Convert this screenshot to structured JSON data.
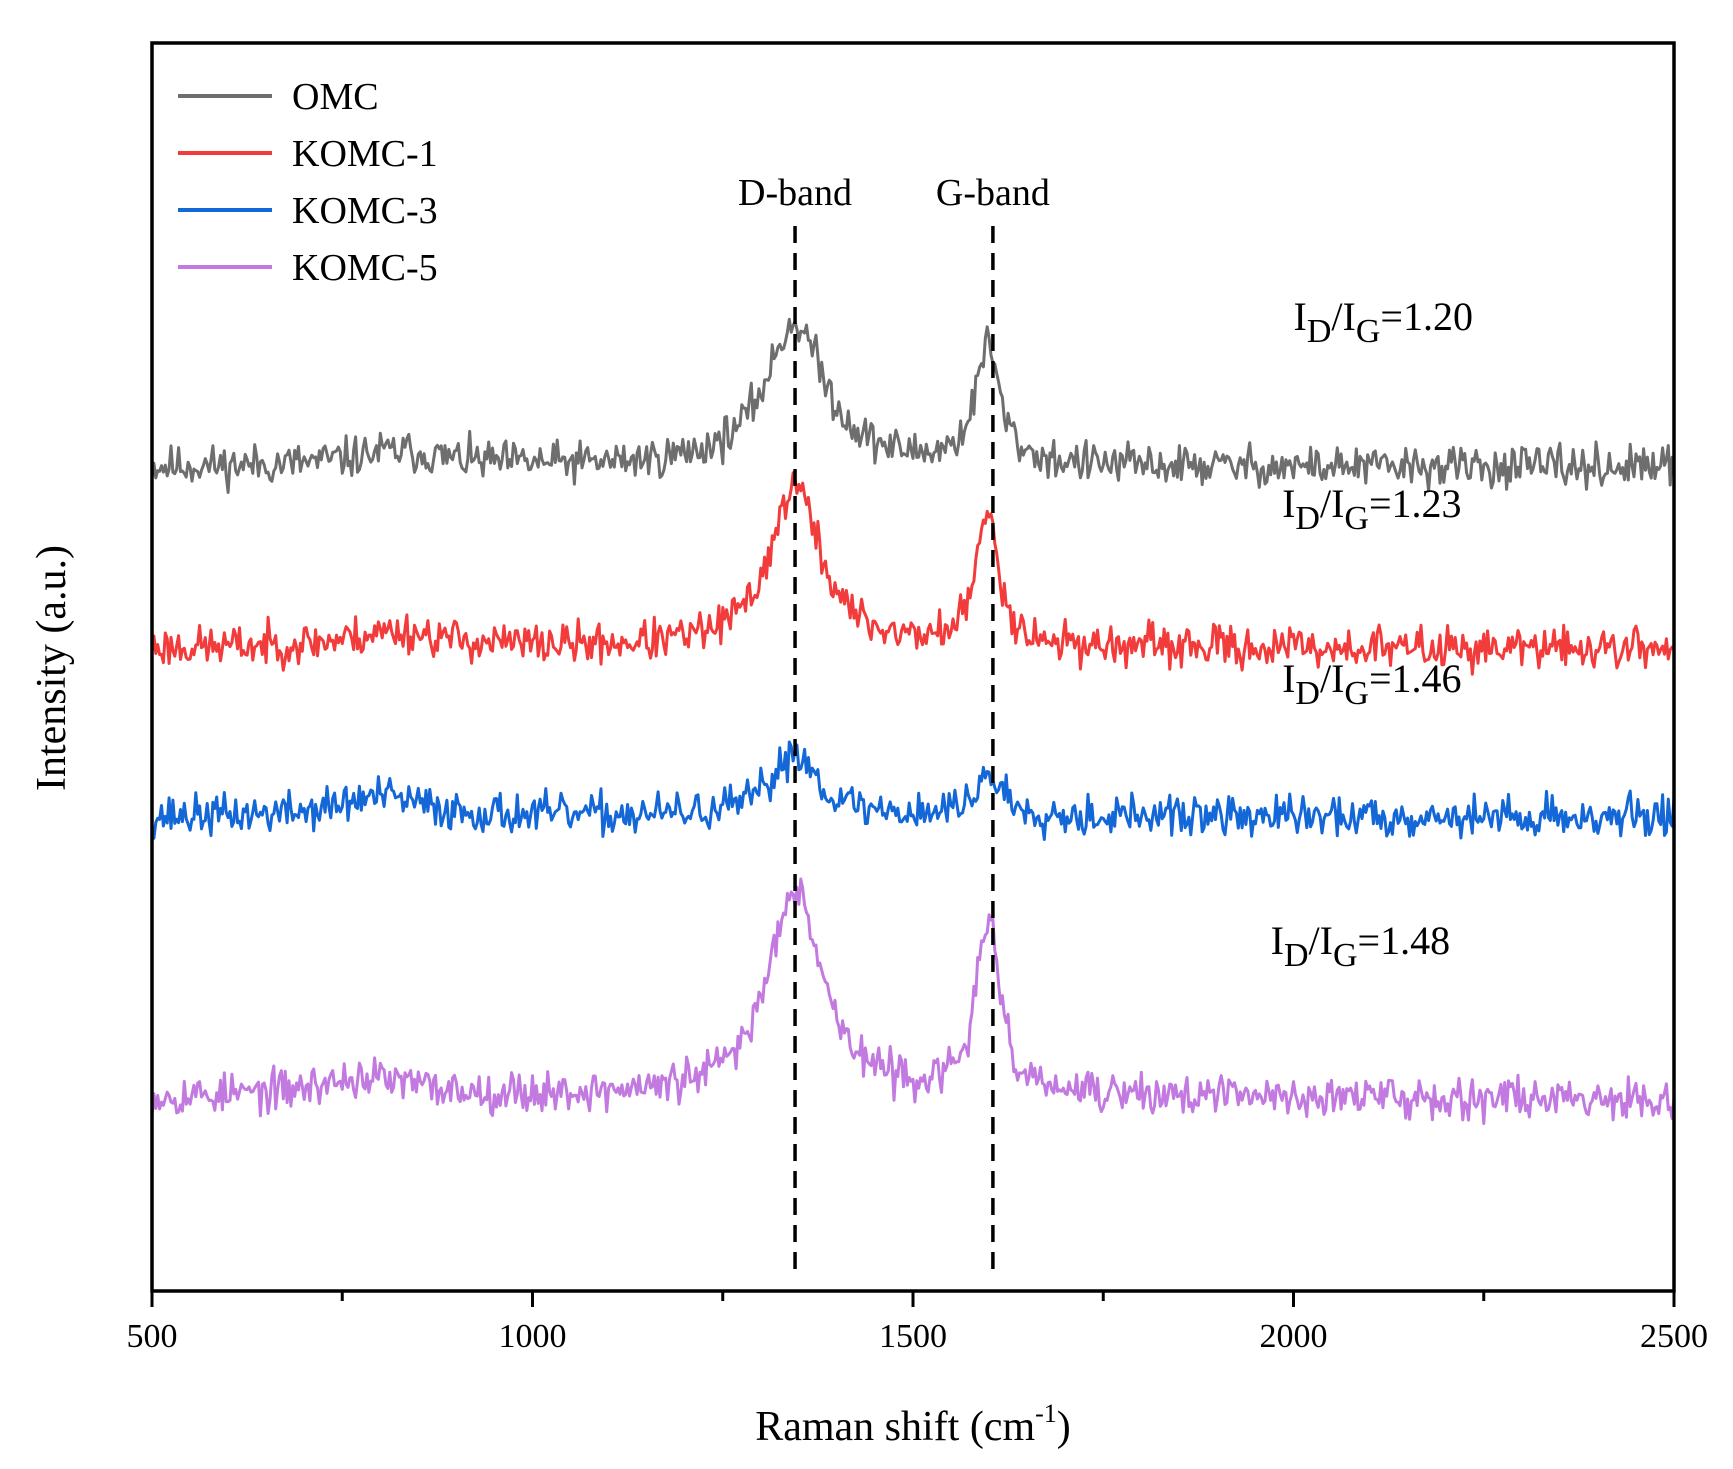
{
  "chart_data": {
    "type": "line",
    "title": "",
    "xlabel": "Raman shift (cm",
    "xlabel_sup": "-1",
    "xlabel_tail": ")",
    "ylabel": "Intensity (a.u.)",
    "xlim": [
      500,
      2500
    ],
    "xticks": [
      500,
      1000,
      1500,
      2000,
      2500
    ],
    "ylim": [
      0,
      100
    ],
    "legend_position": "top-left",
    "grid": false,
    "series": [
      {
        "name": "OMC",
        "color": "#6e6e6e",
        "baseline": 66,
        "noise": 1.6,
        "seed": 11,
        "peaks": [
          {
            "center": 1345,
            "height": 11.5,
            "width": 95
          },
          {
            "center": 1598,
            "height": 9.5,
            "width": 38
          },
          {
            "center": 820,
            "height": 1.2,
            "width": 150
          }
        ],
        "points": [
          [
            500,
            66
          ],
          [
            700,
            66.5
          ],
          [
            900,
            66.8
          ],
          [
            1100,
            68
          ],
          [
            1250,
            71
          ],
          [
            1345,
            78
          ],
          [
            1450,
            73
          ],
          [
            1530,
            72.5
          ],
          [
            1598,
            76
          ],
          [
            1680,
            67
          ],
          [
            2000,
            66
          ],
          [
            2500,
            66.5
          ]
        ]
      },
      {
        "name": "KOMC-1",
        "color": "#f23b3b",
        "baseline": 51.5,
        "noise": 1.6,
        "seed": 23,
        "peaks": [
          {
            "center": 1345,
            "height": 13,
            "width": 80
          },
          {
            "center": 1598,
            "height": 10.5,
            "width": 36
          },
          {
            "center": 820,
            "height": 1.3,
            "width": 150
          }
        ],
        "points": [
          [
            500,
            51.5
          ],
          [
            700,
            52
          ],
          [
            900,
            52.3
          ],
          [
            1100,
            53
          ],
          [
            1250,
            56
          ],
          [
            1345,
            65
          ],
          [
            1450,
            58
          ],
          [
            1530,
            58
          ],
          [
            1598,
            62
          ],
          [
            1680,
            52
          ],
          [
            2000,
            51.5
          ],
          [
            2500,
            51.5
          ]
        ]
      },
      {
        "name": "KOMC-3",
        "color": "#1467d7",
        "baseline": 38,
        "noise": 1.6,
        "seed": 37,
        "peaks": [
          {
            "center": 1345,
            "height": 5.2,
            "width": 70
          },
          {
            "center": 1600,
            "height": 3.2,
            "width": 45
          },
          {
            "center": 800,
            "height": 1.6,
            "width": 130
          }
        ],
        "points": [
          [
            500,
            38
          ],
          [
            700,
            39
          ],
          [
            850,
            39.5
          ],
          [
            1000,
            38.5
          ],
          [
            1200,
            38.8
          ],
          [
            1345,
            43
          ],
          [
            1450,
            39.5
          ],
          [
            1600,
            41
          ],
          [
            1700,
            38
          ],
          [
            2000,
            38
          ],
          [
            2500,
            38.5
          ]
        ]
      },
      {
        "name": "KOMC-5",
        "color": "#c27ae0",
        "baseline": 15.5,
        "noise": 1.6,
        "seed": 53,
        "peaks": [
          {
            "center": 1345,
            "height": 17,
            "width": 85
          },
          {
            "center": 1598,
            "height": 14,
            "width": 36
          },
          {
            "center": 780,
            "height": 1.5,
            "width": 160
          }
        ],
        "points": [
          [
            500,
            15.5
          ],
          [
            700,
            16.5
          ],
          [
            900,
            16.5
          ],
          [
            1100,
            17.5
          ],
          [
            1250,
            21
          ],
          [
            1345,
            33
          ],
          [
            1470,
            21
          ],
          [
            1530,
            22.5
          ],
          [
            1598,
            29.5
          ],
          [
            1680,
            16
          ],
          [
            2000,
            15.5
          ],
          [
            2500,
            15.5
          ]
        ]
      }
    ],
    "reference_lines": [
      {
        "x": 1345,
        "label": "D-band"
      },
      {
        "x": 1605,
        "label": "G-band"
      }
    ],
    "annotations": [
      {
        "base": "I",
        "sub1": "D",
        "mid": "/I",
        "sub2": "G",
        "value": "=1.20",
        "x": 2000,
        "y": 77
      },
      {
        "base": "I",
        "sub1": "D",
        "mid": "/I",
        "sub2": "G",
        "value": "=1.23",
        "x": 1985,
        "y": 62
      },
      {
        "base": "I",
        "sub1": "D",
        "mid": "/I",
        "sub2": "G",
        "value": "=1.46",
        "x": 1985,
        "y": 48
      },
      {
        "base": "I",
        "sub1": "D",
        "mid": "/I",
        "sub2": "G",
        "value": "=1.48",
        "x": 1970,
        "y": 27
      }
    ]
  }
}
